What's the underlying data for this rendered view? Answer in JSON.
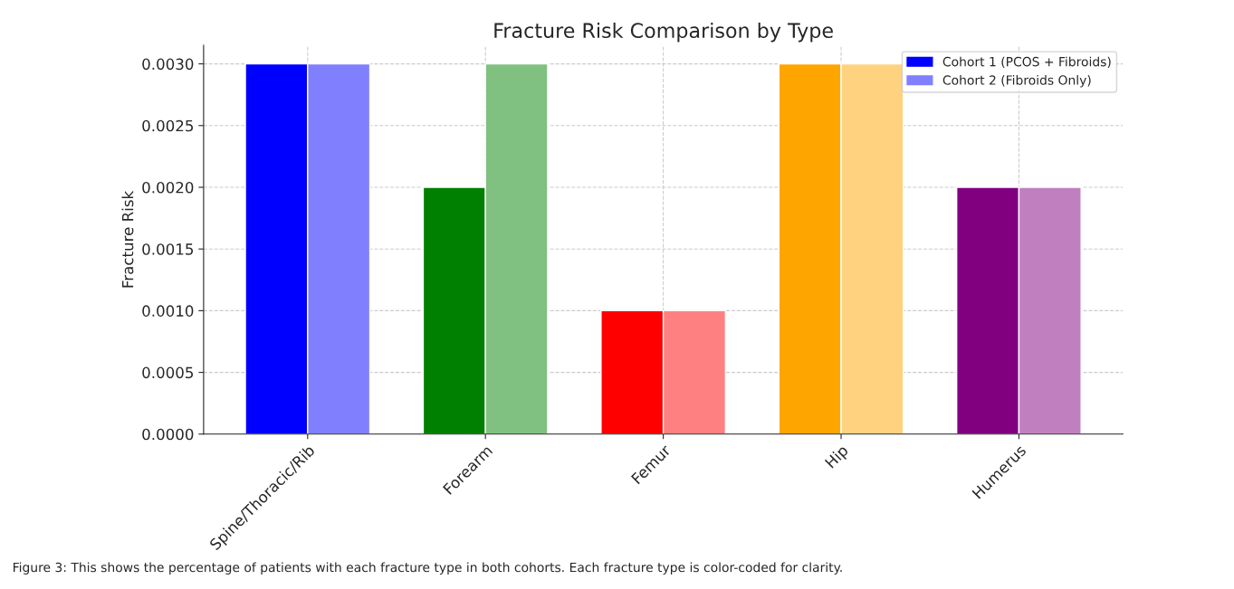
{
  "chart_data": {
    "type": "bar",
    "title": "Fracture Risk Comparison by Type",
    "ylabel": "Fracture Risk",
    "categories": [
      "Spine/Thoracic/Rib",
      "Forearm",
      "Femur",
      "Hip",
      "Humerus"
    ],
    "series": [
      {
        "name": "Cohort 1 (PCOS + Fibroids)",
        "color": "#0000ff",
        "colors": [
          "#0000ff",
          "#008000",
          "#ff0000",
          "#ffa500",
          "#800080"
        ],
        "values": [
          0.003,
          0.002,
          0.001,
          0.003,
          0.002
        ]
      },
      {
        "name": "Cohort 2 (Fibroids Only)",
        "color": "#8080ff",
        "colors": [
          "#8080ff",
          "#80c080",
          "#ff8080",
          "#ffd280",
          "#c080c0"
        ],
        "values": [
          0.003,
          0.003,
          0.001,
          0.003,
          0.002
        ]
      }
    ],
    "ylim": [
      0,
      0.00315
    ],
    "yticks": [
      {
        "value": 0,
        "label": "0.0000"
      },
      {
        "value": 0.0005,
        "label": "0.0005"
      },
      {
        "value": 0.001,
        "label": "0.0010"
      },
      {
        "value": 0.0015,
        "label": "0.0015"
      },
      {
        "value": 0.002,
        "label": "0.0020"
      },
      {
        "value": 0.0025,
        "label": "0.0025"
      },
      {
        "value": 0.003,
        "label": "0.0030"
      }
    ],
    "grid": true,
    "legend": "top right",
    "annotations": [
      "Figure 3: This shows the percentage of patients with each fracture type in both cohorts. Each fracture type is color-coded for clarity."
    ]
  }
}
